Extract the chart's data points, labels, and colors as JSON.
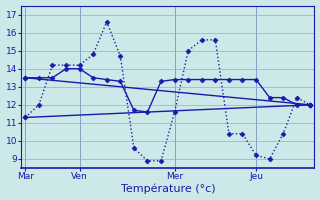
{
  "title": "Température (°c)",
  "background_color": "#cce8e8",
  "grid_color": "#88b4c8",
  "line_color": "#1a1aaa",
  "x_tick_labels": [
    "Mar",
    "Ven",
    "Mer",
    "Jeu"
  ],
  "x_tick_positions": [
    0,
    4,
    11,
    17
  ],
  "xlim": [
    -0.3,
    21.3
  ],
  "ylim": [
    8.5,
    17.5
  ],
  "yticks": [
    9,
    10,
    11,
    12,
    13,
    14,
    15,
    16,
    17
  ],
  "lines": [
    {
      "x": [
        0,
        1,
        2,
        3,
        4,
        5,
        6,
        7,
        8,
        9,
        10,
        11,
        12,
        13,
        14,
        15,
        16,
        17,
        18,
        19,
        20,
        21
      ],
      "y": [
        11.3,
        12.0,
        14.2,
        14.2,
        14.2,
        14.8,
        16.6,
        14.7,
        9.6,
        8.9,
        8.9,
        11.6,
        15.0,
        15.6,
        15.6,
        10.4,
        10.4,
        9.2,
        9.0,
        10.4,
        12.4,
        12.0
      ],
      "style": ":",
      "marker": "D",
      "markersize": 2.5,
      "linewidth": 1.0
    },
    {
      "x": [
        0,
        1,
        2,
        3,
        4,
        5,
        6,
        7,
        8,
        9,
        10,
        11,
        12,
        13,
        14,
        15,
        16,
        17,
        18,
        19,
        20,
        21
      ],
      "y": [
        13.5,
        13.5,
        13.5,
        14.0,
        14.0,
        13.5,
        13.4,
        13.3,
        11.7,
        11.6,
        13.3,
        13.4,
        13.4,
        13.4,
        13.4,
        13.4,
        13.4,
        13.4,
        12.4,
        12.4,
        12.0,
        12.0
      ],
      "style": "-",
      "marker": "D",
      "markersize": 2.5,
      "linewidth": 1.0
    },
    {
      "x": [
        0,
        21
      ],
      "y": [
        13.5,
        12.0
      ],
      "style": "-",
      "marker": "D",
      "markersize": 2.5,
      "linewidth": 1.0
    },
    {
      "x": [
        0,
        21
      ],
      "y": [
        11.3,
        12.0
      ],
      "style": "-",
      "marker": "D",
      "markersize": 2.5,
      "linewidth": 1.0
    }
  ]
}
